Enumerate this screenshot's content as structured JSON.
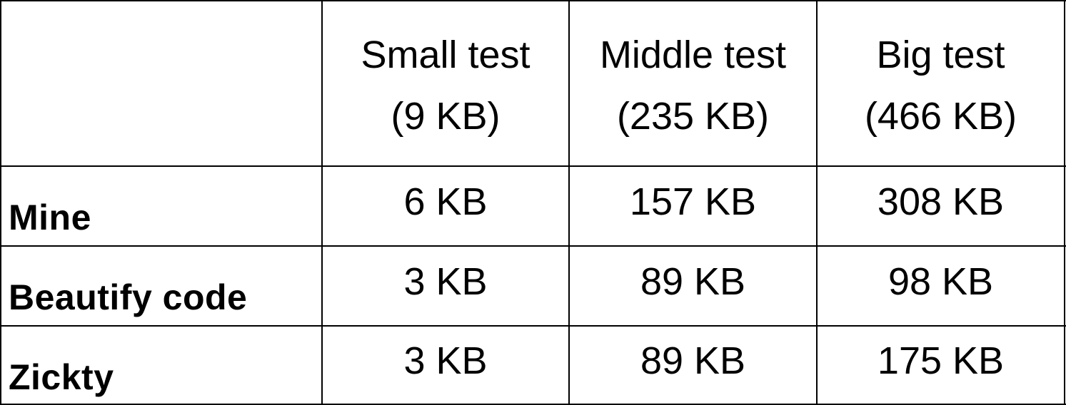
{
  "chart_data": {
    "type": "table",
    "columns": [
      {
        "line1": "Small test",
        "line2": "(9 KB)"
      },
      {
        "line1": "Middle test",
        "line2": "(235 KB)"
      },
      {
        "line1": "Big test",
        "line2": "(466 KB)"
      }
    ],
    "rows": [
      {
        "label": "Mine",
        "cells": [
          "6 KB",
          "157 KB",
          "308 KB"
        ]
      },
      {
        "label": "Beautify code",
        "cells": [
          "3 KB",
          "89 KB",
          "98 KB"
        ]
      },
      {
        "label": "Zickty",
        "cells": [
          "3 KB",
          "89 KB",
          "175 KB"
        ]
      }
    ]
  }
}
